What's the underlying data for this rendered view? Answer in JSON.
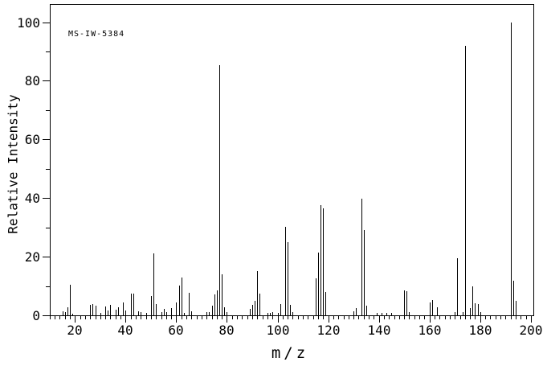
{
  "annotation": "MS-IW-5384",
  "chart_data": {
    "type": "bar",
    "title": "",
    "subtitle": "",
    "xlabel": "m/z",
    "ylabel": "Relative Intensity",
    "xlim": [
      10,
      201
    ],
    "ylim": [
      0,
      106
    ],
    "grid": false,
    "legend": "none",
    "bar_color": "#000000",
    "frame_color": "#000000",
    "x_major_ticks": [
      20,
      40,
      60,
      80,
      100,
      120,
      140,
      160,
      180,
      200
    ],
    "x_minor_tick_step": 2,
    "y_major_ticks": [
      0,
      20,
      40,
      60,
      80,
      100
    ],
    "y_minor_tick_step": 10,
    "annotation": "MS-IW-5384",
    "peaks": [
      [
        15,
        1.5
      ],
      [
        16,
        1.0
      ],
      [
        17,
        2.7
      ],
      [
        18,
        10.5
      ],
      [
        19,
        0.6
      ],
      [
        26,
        3.5
      ],
      [
        27,
        3.9
      ],
      [
        28,
        3.3
      ],
      [
        30,
        0.7
      ],
      [
        32,
        3.0
      ],
      [
        33,
        1.6
      ],
      [
        34,
        3.5
      ],
      [
        36,
        1.9
      ],
      [
        37,
        2.8
      ],
      [
        39,
        4.4
      ],
      [
        40,
        1.6
      ],
      [
        42,
        7.4
      ],
      [
        43,
        7.4
      ],
      [
        45,
        1.5
      ],
      [
        46,
        1.0
      ],
      [
        48,
        0.7
      ],
      [
        50,
        6.5
      ],
      [
        51,
        21.0
      ],
      [
        52,
        3.9
      ],
      [
        54,
        1.0
      ],
      [
        55,
        2.1
      ],
      [
        56,
        1.0
      ],
      [
        58,
        2.4
      ],
      [
        60,
        4.5
      ],
      [
        61,
        10.2
      ],
      [
        62,
        12.9
      ],
      [
        63,
        0.8
      ],
      [
        65,
        7.6
      ],
      [
        66,
        1.5
      ],
      [
        72,
        1.0
      ],
      [
        73,
        1.0
      ],
      [
        74,
        3.3
      ],
      [
        75,
        7.0
      ],
      [
        76,
        8.5
      ],
      [
        77,
        85.4
      ],
      [
        78,
        14.0
      ],
      [
        79,
        2.7
      ],
      [
        80,
        1.0
      ],
      [
        89,
        2.1
      ],
      [
        90,
        3.6
      ],
      [
        91,
        4.9
      ],
      [
        92,
        15.2
      ],
      [
        93,
        7.4
      ],
      [
        96,
        0.9
      ],
      [
        97,
        0.7
      ],
      [
        98,
        1.2
      ],
      [
        100,
        0.7
      ],
      [
        101,
        3.8
      ],
      [
        103,
        30.3
      ],
      [
        104,
        25.0
      ],
      [
        105,
        3.5
      ],
      [
        106,
        1.0
      ],
      [
        115,
        12.5
      ],
      [
        116,
        21.5
      ],
      [
        117,
        37.5
      ],
      [
        118,
        36.5
      ],
      [
        119,
        7.9
      ],
      [
        130,
        1.5
      ],
      [
        131,
        2.4
      ],
      [
        133,
        39.7
      ],
      [
        134,
        29.2
      ],
      [
        135,
        3.3
      ],
      [
        139,
        0.8
      ],
      [
        141,
        0.8
      ],
      [
        143,
        0.8
      ],
      [
        145,
        0.7
      ],
      [
        150,
        8.6
      ],
      [
        151,
        8.3
      ],
      [
        152,
        1.2
      ],
      [
        160,
        4.5
      ],
      [
        161,
        5.1
      ],
      [
        163,
        2.7
      ],
      [
        170,
        1.2
      ],
      [
        171,
        19.5
      ],
      [
        173,
        1.0
      ],
      [
        174,
        92.0
      ],
      [
        176,
        2.4
      ],
      [
        177,
        9.9
      ],
      [
        178,
        4.2
      ],
      [
        179,
        3.8
      ],
      [
        180,
        1.0
      ],
      [
        192,
        100.0
      ],
      [
        193,
        11.8
      ],
      [
        194,
        4.9
      ]
    ]
  }
}
